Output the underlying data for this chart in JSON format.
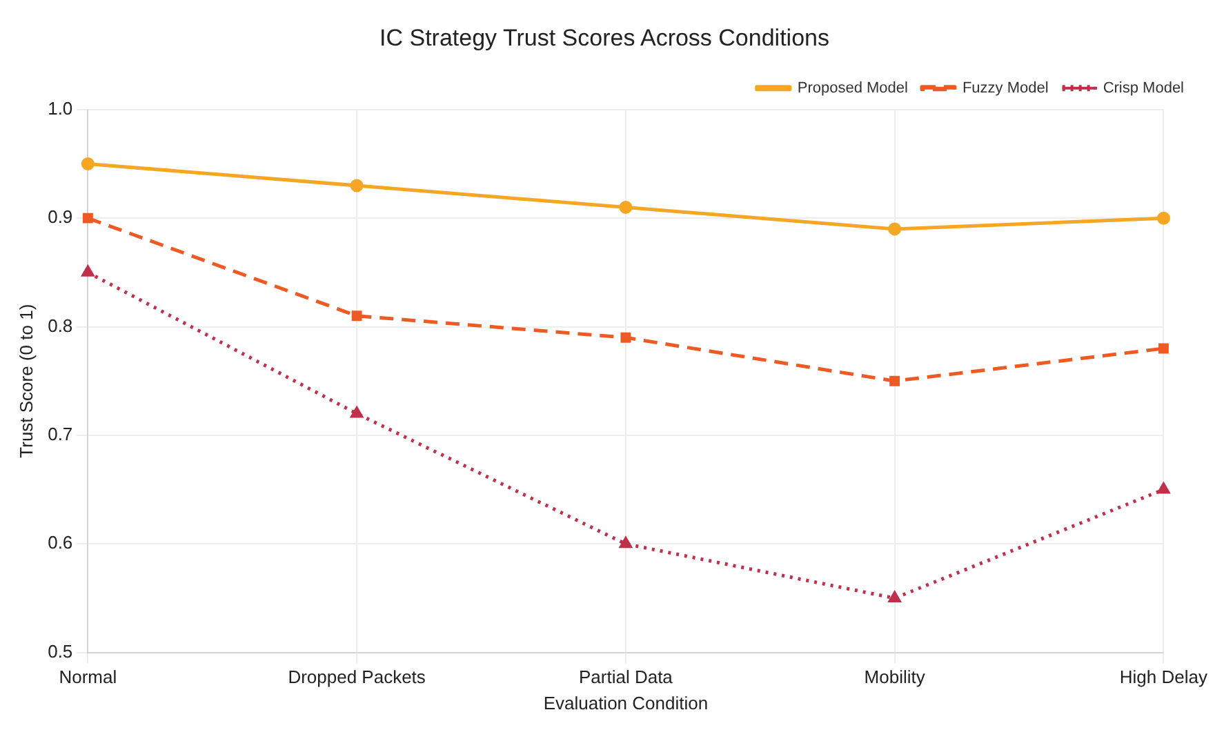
{
  "chart_data": {
    "type": "line",
    "title": "IC Strategy Trust Scores Across Conditions",
    "xlabel": "Evaluation Condition",
    "ylabel": "Trust Score (0 to 1)",
    "categories": [
      "Normal",
      "Dropped Packets",
      "Partial Data",
      "Mobility",
      "High Delay"
    ],
    "series": [
      {
        "name": "Proposed Model",
        "color": "#f5a623",
        "values": [
          0.95,
          0.93,
          0.91,
          0.89,
          0.9
        ],
        "marker": "circle",
        "line_style": "solid"
      },
      {
        "name": "Fuzzy Model",
        "color": "#ee5a24",
        "values": [
          0.9,
          0.81,
          0.79,
          0.75,
          0.78
        ],
        "marker": "square",
        "line_style": "dashed"
      },
      {
        "name": "Crisp Model",
        "color": "#c0304a",
        "values": [
          0.85,
          0.72,
          0.6,
          0.55,
          0.65
        ],
        "marker": "triangle",
        "line_style": "dotted"
      }
    ],
    "ylim": [
      0.5,
      1.0
    ],
    "yticks": [
      {
        "value": 0.5,
        "label": "0.5"
      },
      {
        "value": 0.6,
        "label": "0.6"
      },
      {
        "value": 0.7,
        "label": "0.7"
      },
      {
        "value": 0.8,
        "label": "0.8"
      },
      {
        "value": 0.9,
        "label": "0.9"
      },
      {
        "value": 1.0,
        "label": "1.0"
      }
    ],
    "grid": true,
    "legend": "top right"
  }
}
